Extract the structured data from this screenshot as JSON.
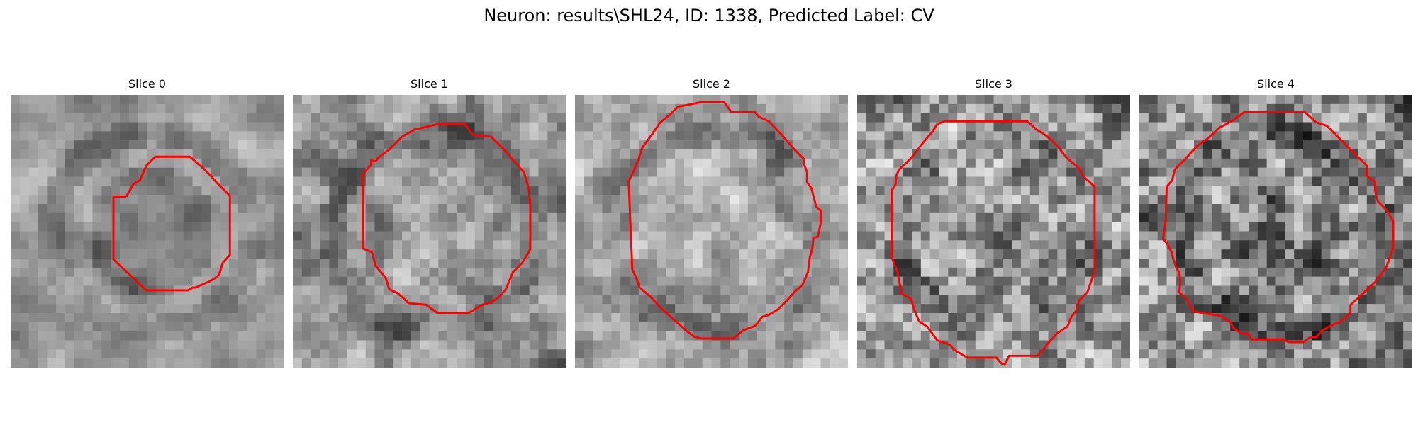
{
  "figure": {
    "title": "Neuron: results\\SHL24, ID: 1338, Predicted Label: CV"
  },
  "panels": [
    {
      "title": "Slice 0",
      "seed": 17,
      "smooth": 3,
      "brightness": 0.62,
      "contrast": 0.38,
      "inner_dark": 0.14
    },
    {
      "title": "Slice 1",
      "seed": 41,
      "smooth": 2,
      "brightness": 0.58,
      "contrast": 0.42,
      "inner_dark": -0.02
    },
    {
      "title": "Slice 2",
      "seed": 73,
      "smooth": 2,
      "brightness": 0.64,
      "contrast": 0.4,
      "inner_dark": -0.06
    },
    {
      "title": "Slice 3",
      "seed": 97,
      "smooth": 1,
      "brightness": 0.6,
      "contrast": 0.44,
      "inner_dark": 0.04
    },
    {
      "title": "Slice 4",
      "seed": 131,
      "smooth": 1,
      "brightness": 0.55,
      "contrast": 0.48,
      "inner_dark": 0.08
    }
  ],
  "colors": {
    "contour": "#ff0000"
  }
}
